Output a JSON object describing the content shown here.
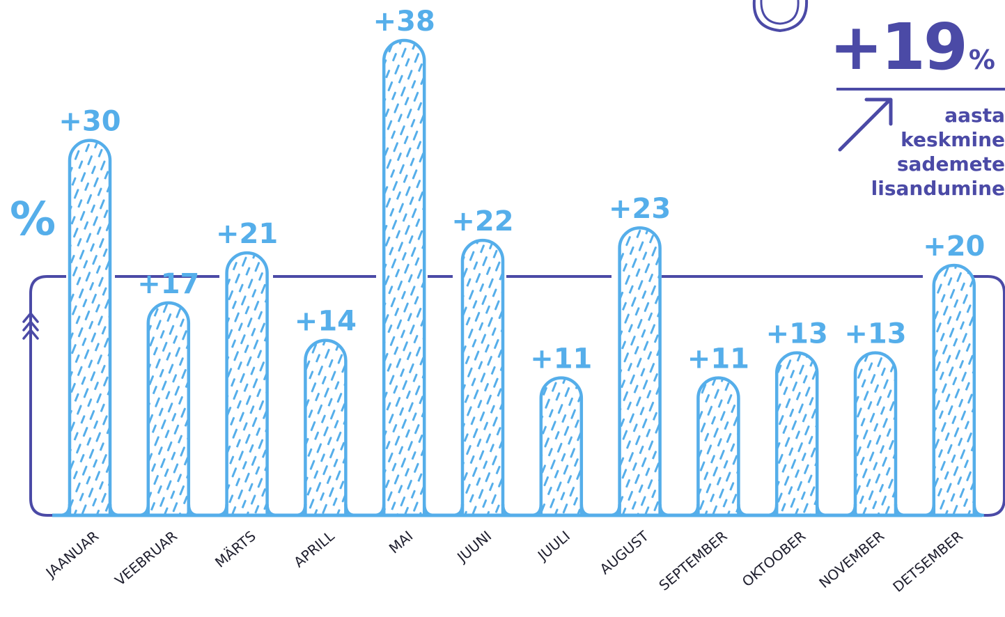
{
  "colors": {
    "bar": "#55aeea",
    "frame": "#4b4aa6",
    "month_label": "#1f1f2e"
  },
  "icons": [
    "arrow-up-right-icon",
    "triple-chevron-up-icon",
    "circle-emblem-icon"
  ],
  "summary": {
    "value": "+19",
    "unit": "%",
    "caption_lines": [
      "aasta",
      "keskmine",
      "sademete",
      "lisandumine"
    ]
  },
  "axis_unit": "%",
  "chart_data": {
    "type": "bar",
    "categories": [
      "JAANUAR",
      "VEEBRUAR",
      "MÄRTS",
      "APRILL",
      "MAI",
      "JUUNI",
      "JUULI",
      "AUGUST",
      "SEPTEMBER",
      "OKTOOBER",
      "NOVEMBER",
      "DETSEMBER"
    ],
    "values": [
      30,
      17,
      21,
      14,
      38,
      22,
      11,
      23,
      11,
      13,
      13,
      20
    ],
    "value_labels": [
      "+30",
      "+17",
      "+21",
      "+14",
      "+38",
      "+22",
      "+11",
      "+23",
      "+11",
      "+13",
      "+13",
      "+20"
    ],
    "reference_value": 19,
    "ylabel": "%",
    "ylim": [
      0,
      40
    ]
  }
}
